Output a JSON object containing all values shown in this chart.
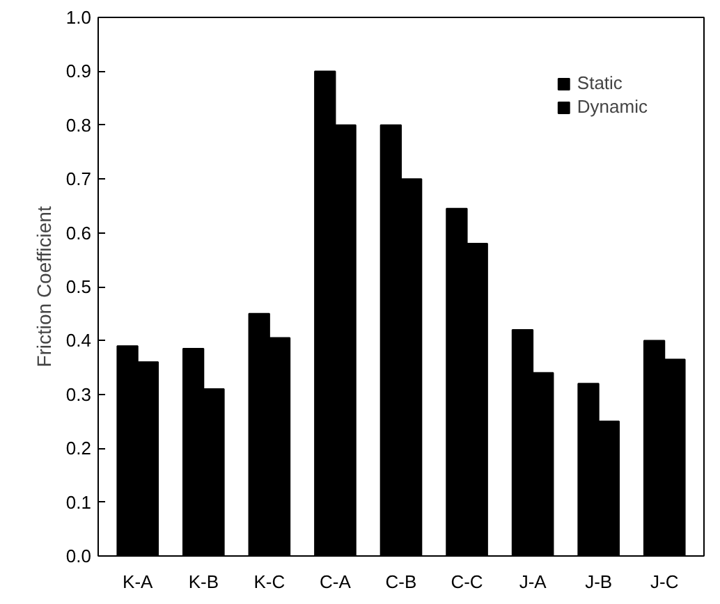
{
  "chart_data": {
    "type": "bar",
    "ylabel": "Friction Coefficient",
    "categories": [
      "K-A",
      "K-B",
      "K-C",
      "C-A",
      "C-B",
      "C-C",
      "J-A",
      "J-B",
      "J-C"
    ],
    "series": [
      {
        "name": "Static",
        "color": "#000000",
        "values": [
          0.39,
          0.385,
          0.45,
          0.9,
          0.8,
          0.645,
          0.42,
          0.32,
          0.4
        ]
      },
      {
        "name": "Dynamic",
        "color": "#000000",
        "values": [
          0.36,
          0.31,
          0.405,
          0.8,
          0.7,
          0.58,
          0.34,
          0.25,
          0.365
        ]
      }
    ],
    "ylim": [
      0,
      1.0
    ],
    "yticks": [
      {
        "value": 0,
        "label": "0.0"
      },
      0.1,
      0.2,
      0.3,
      0.4,
      0.5,
      0.6,
      0.7,
      0.8,
      0.9,
      {
        "value": 1,
        "label": "1.0"
      }
    ],
    "grid": false,
    "legend": "top right"
  }
}
